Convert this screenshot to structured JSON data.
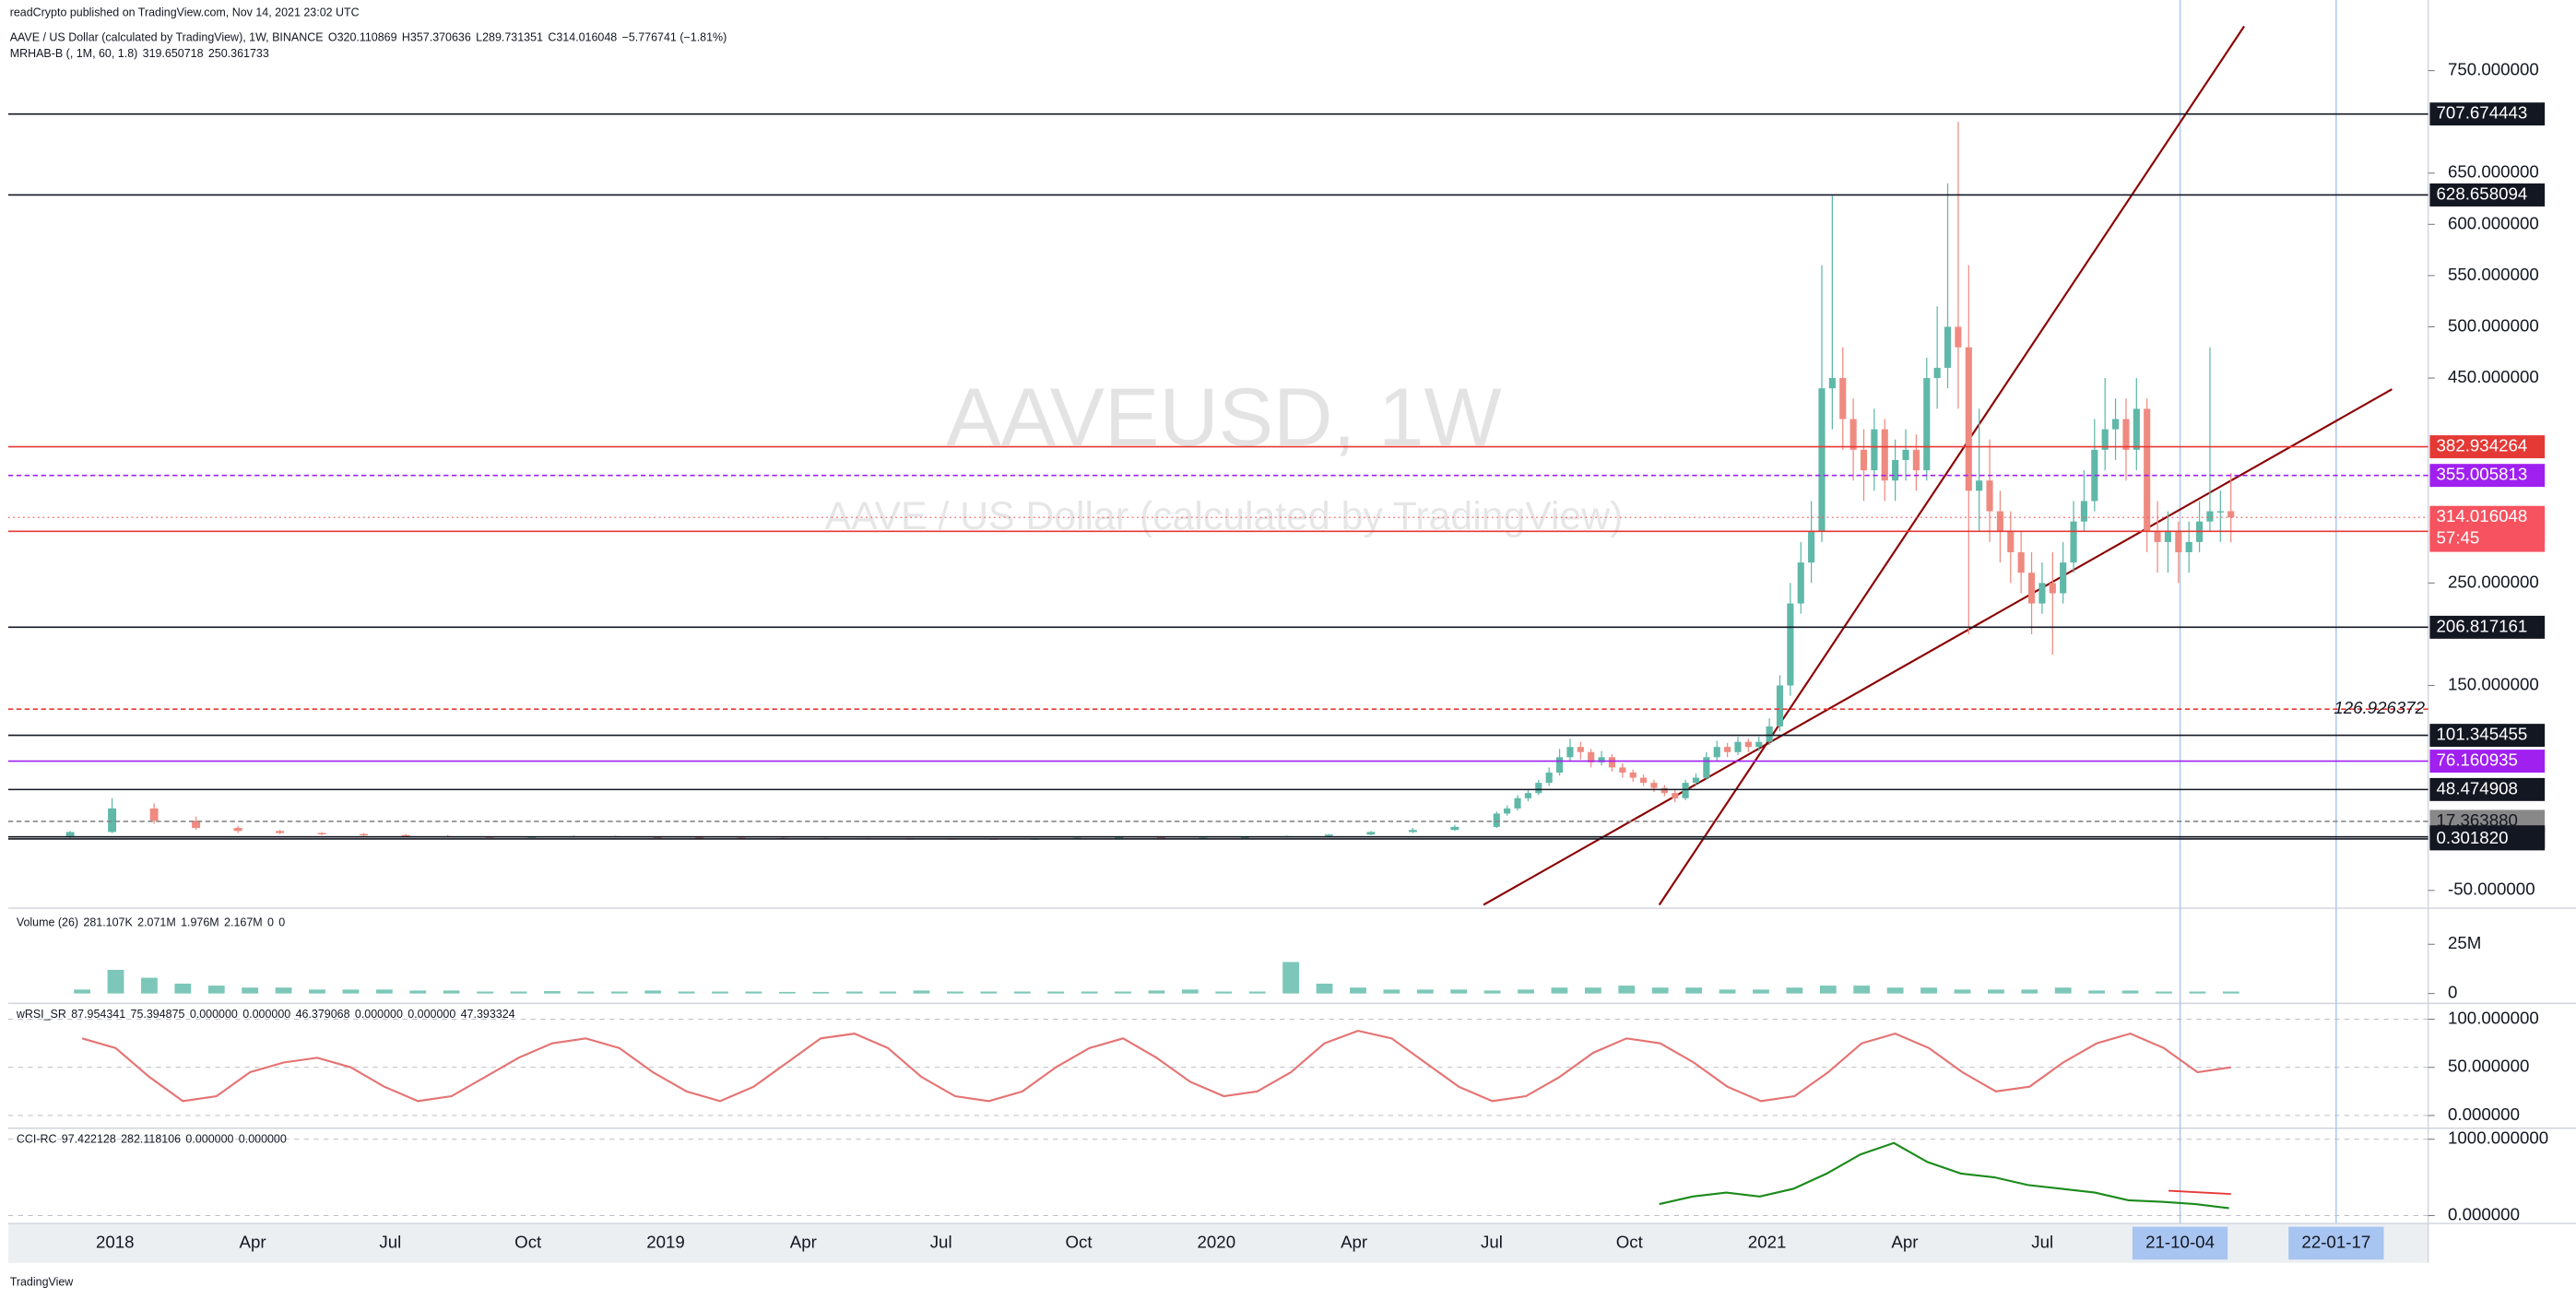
{
  "header": {
    "publisher": "readCrypto published on TradingView.com, Nov 14, 2021 23:02 UTC",
    "symbol": "AAVE / US Dollar (calculated by TradingView), 1W, BINANCE",
    "ohlc_prefixes": [
      "O",
      "H",
      "L",
      "C"
    ],
    "change": "−5.776741 (−1.81%)",
    "indicator": "MRHAB-B (, 1M, 60, 1.8)",
    "indicator_values": [
      319.650718,
      250.361733
    ]
  },
  "watermark": {
    "symbol": "AAVEUSD, 1W",
    "description": "AAVE / US Dollar (calculated by TradingView)"
  },
  "chart_data": [
    {
      "type": "candlestick",
      "ylim": [
        -65.7,
        806.1
      ],
      "up_color": "#5fb8a8",
      "down_color": "#ef8a80",
      "last_color": "#f7525f",
      "countdown": "57:45",
      "yticks": [
        {
          "value": 750,
          "label": "750.000000"
        },
        {
          "value": 650,
          "label": "650.000000"
        },
        {
          "value": 600,
          "label": "600.000000"
        },
        {
          "value": 550,
          "label": "550.000000"
        },
        {
          "value": 500,
          "label": "500.000000"
        },
        {
          "value": 450,
          "label": "450.000000"
        },
        {
          "value": 250,
          "label": "250.000000"
        },
        {
          "value": 150,
          "label": "150.000000"
        },
        {
          "value": -50,
          "label": "-50.000000"
        }
      ],
      "ohlc_4w": [
        [
          2,
          8,
          1,
          7
        ],
        [
          7,
          40,
          6,
          30
        ],
        [
          30,
          35,
          15,
          18
        ],
        [
          18,
          22,
          9,
          11
        ],
        [
          11,
          13,
          6,
          8
        ],
        [
          8,
          9,
          5,
          6
        ],
        [
          6,
          7,
          4,
          5
        ],
        [
          5,
          6,
          3,
          4
        ],
        [
          4,
          5,
          2.5,
          3
        ],
        [
          3,
          4,
          2,
          2.5
        ],
        [
          2.5,
          3,
          1.5,
          2
        ],
        [
          2,
          3,
          1.5,
          2.5
        ],
        [
          2.5,
          3.5,
          2,
          3
        ],
        [
          3,
          3.5,
          2,
          2.2
        ],
        [
          2.2,
          2.6,
          1.6,
          1.8
        ],
        [
          1.8,
          2,
          1.2,
          1.4
        ],
        [
          1.4,
          1.6,
          1,
          1.2
        ],
        [
          1.2,
          1.5,
          0.9,
          1.1
        ],
        [
          1.1,
          1.4,
          0.9,
          1
        ],
        [
          1,
          1.2,
          0.8,
          0.9
        ],
        [
          0.9,
          1.1,
          0.7,
          0.8
        ],
        [
          0.8,
          1,
          0.6,
          0.7
        ],
        [
          0.7,
          0.9,
          0.5,
          0.6
        ],
        [
          0.6,
          0.8,
          0.5,
          0.7
        ],
        [
          0.7,
          1.5,
          0.6,
          1.3
        ],
        [
          1.3,
          2,
          1.1,
          1.8
        ],
        [
          1.8,
          2.2,
          0.9,
          1.1
        ],
        [
          1.1,
          1.6,
          0.8,
          1.4
        ],
        [
          1.4,
          2.5,
          1.3,
          2.2
        ],
        [
          2.2,
          3.5,
          2,
          3
        ],
        [
          3,
          5,
          2.8,
          4.5
        ],
        [
          4.5,
          8,
          4,
          7
        ],
        [
          7,
          11,
          6,
          9
        ],
        [
          9,
          14,
          8,
          12
        ]
      ],
      "ohlc_1w": [
        [
          12,
          27,
          11,
          25
        ],
        [
          25,
          33,
          23,
          30
        ],
        [
          30,
          43,
          28,
          40
        ],
        [
          40,
          48,
          37,
          45
        ],
        [
          45,
          58,
          43,
          55
        ],
        [
          55,
          70,
          52,
          65
        ],
        [
          65,
          88,
          62,
          80
        ],
        [
          80,
          98,
          76,
          90
        ],
        [
          90,
          95,
          78,
          85
        ],
        [
          85,
          88,
          70,
          75
        ],
        [
          75,
          86,
          72,
          80
        ],
        [
          80,
          83,
          66,
          70
        ],
        [
          70,
          74,
          60,
          65
        ],
        [
          65,
          68,
          56,
          60
        ],
        [
          60,
          63,
          52,
          55
        ],
        [
          55,
          58,
          46,
          50
        ],
        [
          50,
          53,
          42,
          45
        ],
        [
          45,
          48,
          36,
          40
        ],
        [
          40,
          58,
          38,
          55
        ],
        [
          55,
          64,
          52,
          60
        ],
        [
          60,
          85,
          58,
          80
        ],
        [
          80,
          96,
          76,
          90
        ],
        [
          90,
          94,
          80,
          85
        ],
        [
          85,
          100,
          82,
          95
        ],
        [
          95,
          98,
          85,
          90
        ],
        [
          90,
          100,
          86,
          95
        ],
        [
          95,
          118,
          92,
          110
        ],
        [
          110,
          160,
          105,
          150
        ],
        [
          150,
          250,
          140,
          230
        ],
        [
          230,
          290,
          220,
          270
        ],
        [
          270,
          330,
          250,
          300
        ],
        [
          300,
          560,
          290,
          440
        ],
        [
          440,
          628,
          400,
          450
        ],
        [
          450,
          480,
          380,
          410
        ],
        [
          410,
          430,
          350,
          380
        ],
        [
          380,
          400,
          330,
          360
        ],
        [
          360,
          420,
          340,
          400
        ],
        [
          400,
          410,
          330,
          350
        ],
        [
          350,
          390,
          330,
          370
        ],
        [
          370,
          400,
          350,
          380
        ],
        [
          380,
          395,
          340,
          360
        ],
        [
          360,
          470,
          350,
          450
        ],
        [
          450,
          520,
          420,
          460
        ],
        [
          460,
          640,
          440,
          500
        ],
        [
          500,
          700,
          420,
          480
        ],
        [
          480,
          560,
          200,
          340
        ],
        [
          340,
          420,
          300,
          350
        ],
        [
          350,
          390,
          290,
          320
        ],
        [
          320,
          340,
          270,
          300
        ],
        [
          300,
          320,
          250,
          280
        ],
        [
          280,
          300,
          240,
          260
        ],
        [
          260,
          280,
          200,
          230
        ],
        [
          230,
          270,
          220,
          250
        ],
        [
          250,
          280,
          180,
          240
        ],
        [
          240,
          290,
          230,
          270
        ],
        [
          270,
          330,
          260,
          310
        ],
        [
          310,
          360,
          300,
          330
        ],
        [
          330,
          410,
          320,
          380
        ],
        [
          380,
          450,
          360,
          400
        ],
        [
          400,
          430,
          370,
          410
        ],
        [
          410,
          430,
          350,
          380
        ],
        [
          380,
          450,
          360,
          420
        ],
        [
          420,
          430,
          280,
          300
        ],
        [
          300,
          330,
          260,
          290
        ],
        [
          290,
          320,
          260,
          300
        ],
        [
          300,
          310,
          250,
          280
        ],
        [
          280,
          310,
          260,
          290
        ],
        [
          290,
          330,
          280,
          310
        ],
        [
          310,
          480,
          300,
          320
        ],
        [
          320,
          340,
          290,
          320.110869
        ],
        [
          320.110869,
          357.370636,
          289.731351,
          314.016048
        ]
      ],
      "levels": [
        {
          "price": 707.674443,
          "color": "#131722",
          "tag": true
        },
        {
          "price": 628.658094,
          "color": "#131722",
          "tag": true
        },
        {
          "price": 382.934264,
          "color": "#e53935",
          "tag": true
        },
        {
          "price": 355.005813,
          "color": "#a020f0",
          "dash": true,
          "tag": true
        },
        {
          "price": 300.459751,
          "color": "#e53935",
          "tag": true
        },
        {
          "price": 206.817161,
          "color": "#131722",
          "tag": true
        },
        {
          "price": 126.926372,
          "color": "#e53935",
          "dash": true,
          "tag": false
        },
        {
          "price": 101.345455,
          "color": "#131722",
          "tag": true
        },
        {
          "price": 76.160935,
          "color": "#a020f0",
          "tag": true
        },
        {
          "price": 48.474908,
          "color": "#131722",
          "tag": true
        },
        {
          "price": 17.36388,
          "label": "17.363880",
          "color": "#888888",
          "dash": true,
          "tag": true,
          "tag_text": "#131722"
        },
        {
          "price": 2.303548,
          "color": "#131722",
          "tag": true
        },
        {
          "price": 0.30182,
          "label": "0.301820",
          "color": "#131722",
          "tag": true
        }
      ]
    },
    {
      "type": "bar",
      "title": "Volume (26)",
      "legend_values": [
        "281.107K",
        "2.071M",
        "1.976M",
        "2.167M",
        "0",
        "0"
      ],
      "legend_color": "#26a69a",
      "color": "#7cc7b9",
      "ylim": [
        -4.2,
        41.7
      ],
      "yticks": [
        {
          "value": 25,
          "label": "25M"
        },
        0
      ],
      "values": [
        2,
        12,
        8,
        5,
        4,
        3,
        3,
        2,
        2,
        2,
        1.5,
        1.5,
        1,
        1,
        1.2,
        1,
        1,
        1.5,
        1,
        1,
        1,
        0.8,
        0.8,
        1,
        1,
        1.5,
        1,
        1,
        1,
        1,
        1,
        1,
        1.5,
        2,
        1,
        1,
        16,
        5,
        3,
        2,
        2,
        2,
        1.5,
        2,
        3,
        3,
        4,
        3,
        3,
        2,
        2,
        3,
        4,
        4,
        3,
        3,
        2,
        2,
        2,
        3,
        1.5,
        1.5,
        1,
        1,
        1
      ]
    },
    {
      "type": "line",
      "title": "wRSI_SR",
      "legend_values": [
        "87.954341",
        "75.394875",
        "0.000000",
        "0.000000",
        "46.379068",
        "0.000000",
        "0.000000",
        "47.393324"
      ],
      "legend_color": "#00897b",
      "color": "#e57373",
      "ylim": [
        -11.5,
        113
      ],
      "yticks": [
        {
          "value": 100,
          "label": "100.000000"
        },
        {
          "value": 50,
          "label": "50.000000"
        },
        {
          "value": 0,
          "label": "0.000000"
        }
      ],
      "values": [
        80,
        70,
        40,
        15,
        20,
        45,
        55,
        60,
        50,
        30,
        15,
        20,
        40,
        60,
        75,
        80,
        70,
        45,
        25,
        15,
        30,
        55,
        80,
        85,
        70,
        40,
        20,
        15,
        25,
        50,
        70,
        80,
        60,
        35,
        20,
        25,
        45,
        75,
        88,
        80,
        55,
        30,
        15,
        20,
        40,
        65,
        80,
        75,
        55,
        30,
        15,
        20,
        45,
        75,
        85,
        70,
        45,
        25,
        30,
        55,
        75,
        85,
        70,
        45,
        50
      ]
    },
    {
      "type": "line",
      "title": "CCI-RC",
      "signal": 282.118106,
      "signal_color": "#e53935",
      "legend_values": [
        "0.000000",
        "0.000000"
      ],
      "legend_color": "#1b8a1b",
      "color": "#1b8a1b",
      "ylim": [
        -82,
        1122
      ],
      "yticks": [
        {
          "value": 1000,
          "label": "1000.000000"
        },
        {
          "value": 0,
          "label": "0.000000"
        }
      ],
      "values": [
        150,
        250,
        300,
        250,
        350,
        550,
        800,
        950,
        700,
        550,
        500,
        400,
        350,
        300,
        200,
        180,
        150,
        97.422128
      ]
    }
  ],
  "time_axis": {
    "labels": [
      "2018",
      "Apr",
      "Jul",
      "Oct",
      "2019",
      "Apr",
      "Jul",
      "Oct",
      "2020",
      "Apr",
      "Jul",
      "Oct",
      "2021",
      "Apr",
      "Jul"
    ],
    "markers": [
      "21-10-04",
      "22-01-17"
    ]
  },
  "footer": "TradingView"
}
